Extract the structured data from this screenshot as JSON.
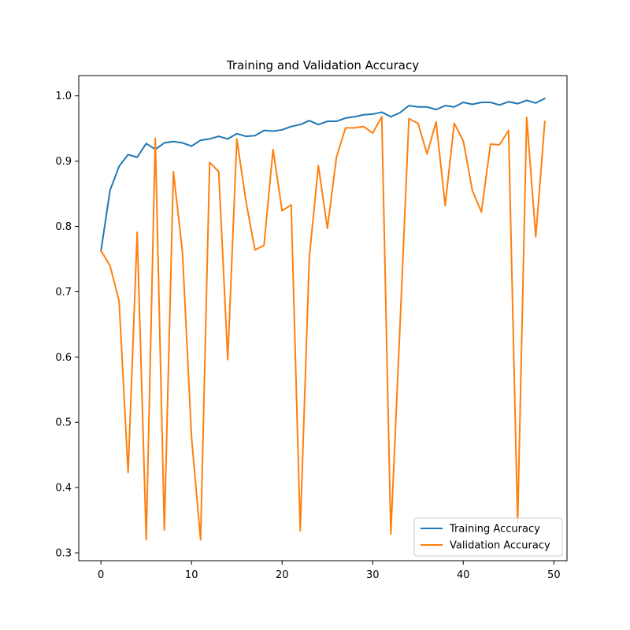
{
  "chart_data": {
    "type": "line",
    "title": "Training and Validation Accuracy",
    "xlabel": "",
    "ylabel": "",
    "xlim": [
      -2.45,
      51.45
    ],
    "ylim": [
      0.288,
      1.031
    ],
    "xticks": [
      0,
      10,
      20,
      30,
      40,
      50
    ],
    "xtick_labels": [
      "0",
      "10",
      "20",
      "30",
      "40",
      "50"
    ],
    "yticks": [
      0.3,
      0.4,
      0.5,
      0.6,
      0.7,
      0.8,
      0.9,
      1.0
    ],
    "ytick_labels": [
      "0.3",
      "0.4",
      "0.5",
      "0.6",
      "0.7",
      "0.8",
      "0.9",
      "1.0"
    ],
    "grid": false,
    "legend": "lower-right",
    "x": [
      0,
      1,
      2,
      3,
      4,
      5,
      6,
      7,
      8,
      9,
      10,
      11,
      12,
      13,
      14,
      15,
      16,
      17,
      18,
      19,
      20,
      21,
      22,
      23,
      24,
      25,
      26,
      27,
      28,
      29,
      30,
      31,
      32,
      33,
      34,
      35,
      36,
      37,
      38,
      39,
      40,
      41,
      42,
      43,
      44,
      45,
      46,
      47,
      48,
      49
    ],
    "series": [
      {
        "name": "Training Accuracy",
        "color": "#1f77b4",
        "values": [
          0.762,
          0.855,
          0.892,
          0.91,
          0.906,
          0.927,
          0.918,
          0.928,
          0.93,
          0.928,
          0.923,
          0.932,
          0.934,
          0.938,
          0.934,
          0.942,
          0.938,
          0.939,
          0.947,
          0.946,
          0.948,
          0.953,
          0.956,
          0.962,
          0.956,
          0.961,
          0.961,
          0.966,
          0.968,
          0.971,
          0.972,
          0.975,
          0.968,
          0.974,
          0.985,
          0.983,
          0.983,
          0.979,
          0.985,
          0.983,
          0.99,
          0.987,
          0.99,
          0.99,
          0.986,
          0.991,
          0.988,
          0.993,
          0.989,
          0.996
        ]
      },
      {
        "name": "Validation Accuracy",
        "color": "#ff7f0e",
        "values": [
          0.763,
          0.74,
          0.686,
          0.423,
          0.791,
          0.32,
          0.935,
          0.335,
          0.884,
          0.76,
          0.477,
          0.32,
          0.898,
          0.884,
          0.596,
          0.934,
          0.839,
          0.764,
          0.771,
          0.918,
          0.824,
          0.833,
          0.334,
          0.752,
          0.893,
          0.797,
          0.906,
          0.951,
          0.951,
          0.953,
          0.943,
          0.968,
          0.329,
          0.643,
          0.965,
          0.958,
          0.911,
          0.96,
          0.832,
          0.958,
          0.931,
          0.855,
          0.822,
          0.926,
          0.925,
          0.947,
          0.346,
          0.967,
          0.784,
          0.961
        ]
      }
    ]
  }
}
